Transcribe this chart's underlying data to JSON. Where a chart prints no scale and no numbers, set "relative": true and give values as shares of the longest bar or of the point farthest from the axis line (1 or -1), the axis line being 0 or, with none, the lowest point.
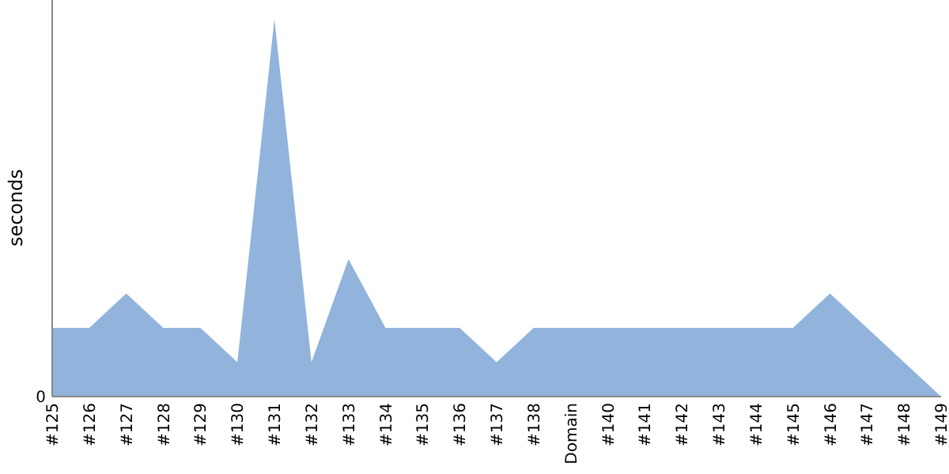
{
  "chart_data": {
    "type": "area",
    "relative": true,
    "ylabel": "seconds",
    "annotations": [
      "0"
    ],
    "categories": [
      "#125",
      "#126",
      "#127",
      "#128",
      "#129",
      "#130",
      "#131",
      "#132",
      "#133",
      "#134",
      "#135",
      "#136",
      "#137",
      "#138",
      "Domain",
      "#140",
      "#141",
      "#142",
      "#143",
      "#144",
      "#145",
      "#146",
      "#147",
      "#148",
      "#149"
    ],
    "values": [
      0.182,
      0.182,
      0.273,
      0.182,
      0.182,
      0.091,
      1,
      0.091,
      0.364,
      0.182,
      0.182,
      0.182,
      0.091,
      0.182,
      0.182,
      0.182,
      0.182,
      0.182,
      0.182,
      0.182,
      0.182,
      0.273,
      0.182,
      0.091,
      0
    ],
    "color": "#92b4dc"
  }
}
